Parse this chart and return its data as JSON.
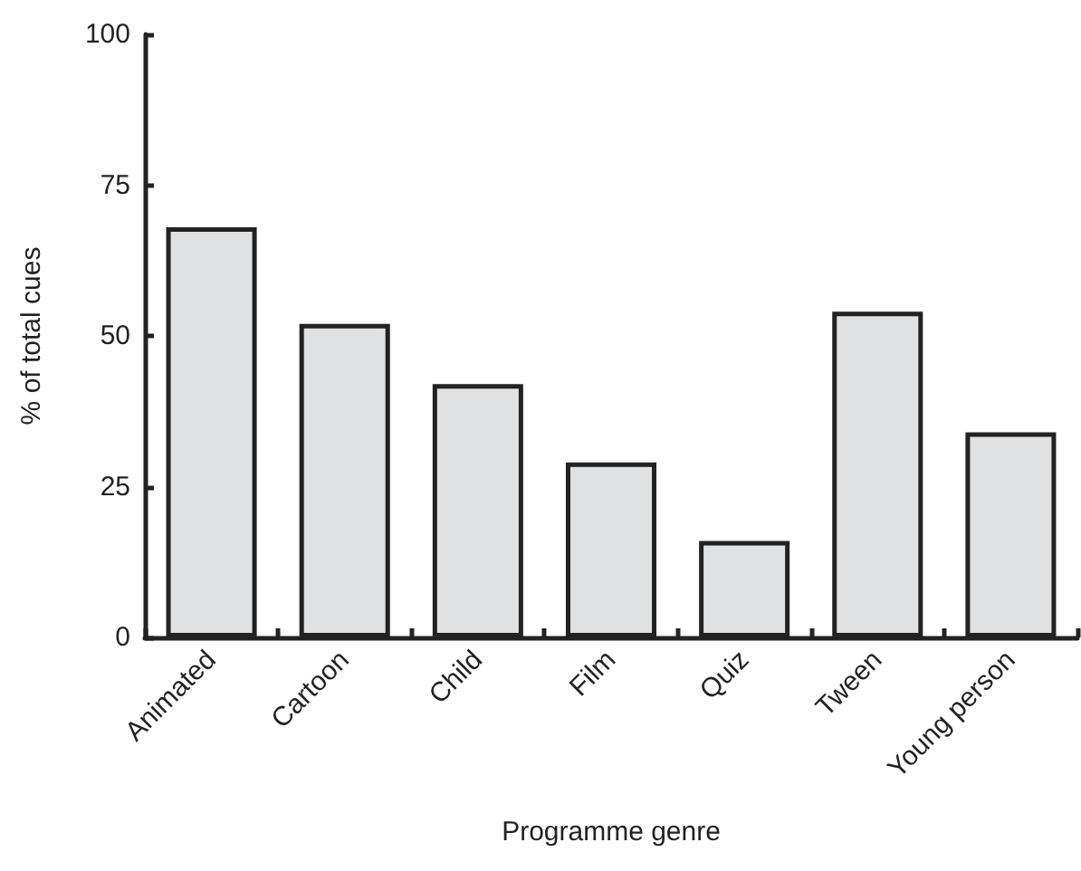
{
  "chart_data": {
    "type": "bar",
    "xlabel": "Programme genre",
    "ylabel": "% of total cues",
    "categories": [
      "Animated",
      "Cartoon",
      "Child",
      "Film",
      "Quiz",
      "Tween",
      "Young person"
    ],
    "values": [
      68,
      52,
      42,
      29,
      16,
      54,
      34
    ],
    "color": "#e0e1e3",
    "ylim": [
      0,
      100
    ],
    "yticks": [
      0,
      25,
      50,
      75,
      100
    ],
    "grid": false
  }
}
